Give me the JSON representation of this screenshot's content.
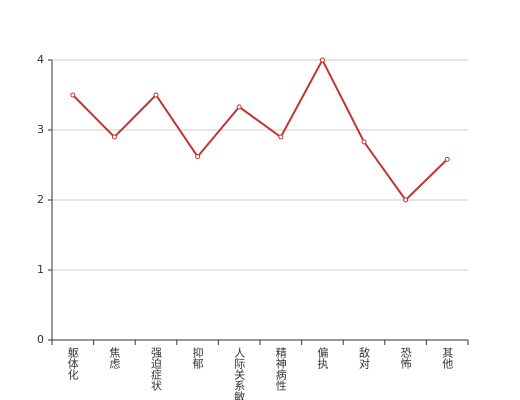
{
  "chart_data": {
    "type": "line",
    "categories": [
      "躯体化",
      "焦虑",
      "强迫症状",
      "抑郁",
      "人际关系敏感",
      "精神病性",
      "偏执",
      "敌对",
      "恐怖",
      "其他"
    ],
    "values": [
      3.5,
      2.9,
      3.5,
      2.62,
      3.33,
      2.9,
      4,
      2.83,
      2,
      2.58
    ],
    "color": "#c23531",
    "ylim": [
      0,
      4
    ],
    "yticks": [
      0,
      1,
      2,
      3,
      4
    ],
    "grid": true
  }
}
